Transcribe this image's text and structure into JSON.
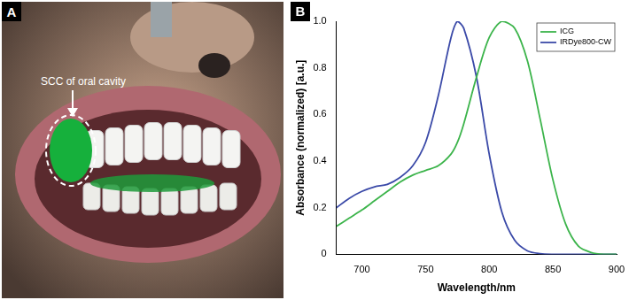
{
  "photo_panel": {
    "label": "A",
    "annotation": "SCC of oral cavity"
  },
  "chart_data": {
    "type": "line",
    "panel_label": "B",
    "x_label": "Wavelength/nm",
    "y_label": "Absorbance (normalized) [a.u.]",
    "x": [
      680,
      690,
      700,
      710,
      720,
      730,
      740,
      750,
      760,
      770,
      775,
      780,
      790,
      800,
      810,
      820,
      830,
      840,
      850,
      860,
      870,
      880,
      890,
      900
    ],
    "series": [
      {
        "name": "ICG",
        "color": "#3cb44b",
        "values": [
          0.12,
          0.155,
          0.19,
          0.23,
          0.27,
          0.31,
          0.34,
          0.36,
          0.38,
          0.43,
          0.48,
          0.56,
          0.76,
          0.93,
          1.0,
          0.97,
          0.83,
          0.58,
          0.32,
          0.13,
          0.035,
          0.008,
          0,
          0
        ]
      },
      {
        "name": "IRDye800-CW",
        "color": "#3b4aa8",
        "values": [
          0.2,
          0.24,
          0.27,
          0.29,
          0.3,
          0.33,
          0.38,
          0.48,
          0.68,
          0.93,
          1.0,
          0.97,
          0.76,
          0.43,
          0.18,
          0.06,
          0.015,
          0.003,
          0,
          0,
          0,
          0,
          0,
          0
        ]
      }
    ],
    "xlim": [
      680,
      900
    ],
    "xticks": [
      700,
      750,
      800,
      850,
      900
    ],
    "ylim": [
      0,
      1
    ],
    "yticks": [
      0,
      0.2,
      0.4,
      0.6,
      0.8,
      {
        "value": 1,
        "label": "1.0"
      }
    ],
    "grid": false,
    "legend": "upper right"
  }
}
